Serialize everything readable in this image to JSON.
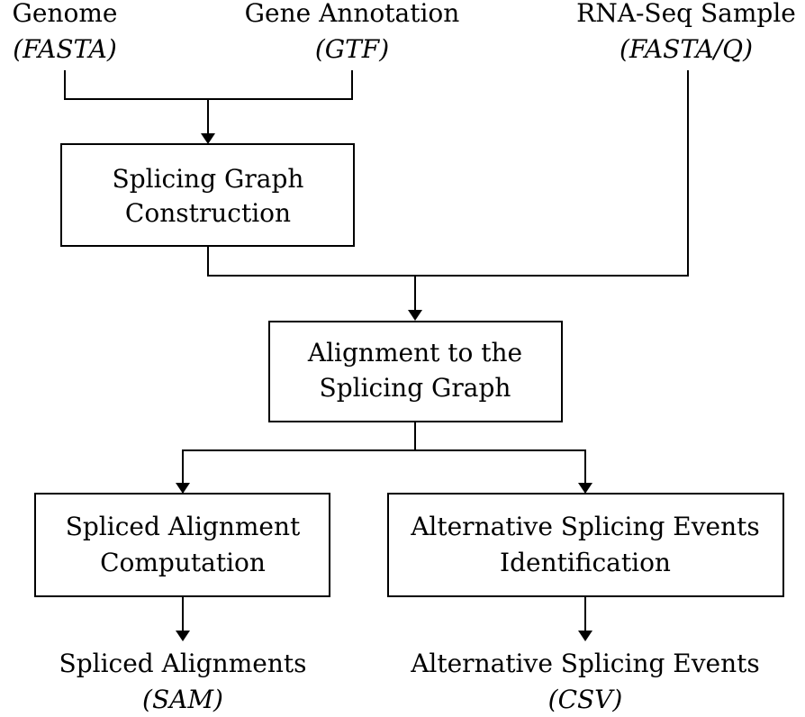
{
  "inputs": {
    "genome": {
      "name": "Genome",
      "format": "(FASTA)"
    },
    "annotation": {
      "name": "Gene Annotation",
      "format": "(GTF)"
    },
    "rnaseq": {
      "name": "RNA-Seq Sample",
      "format": "(FASTA/Q)"
    }
  },
  "steps": {
    "graph_construction": {
      "line1": "Splicing Graph",
      "line2": "Construction"
    },
    "alignment": {
      "line1": "Alignment to the",
      "line2": "Splicing Graph"
    },
    "spliced_alignment": {
      "line1": "Spliced Alignment",
      "line2": "Computation"
    },
    "as_events": {
      "line1": "Alternative Splicing Events",
      "line2": "Identification"
    }
  },
  "outputs": {
    "spliced_alignments": {
      "name": "Spliced Alignments",
      "format": "(SAM)"
    },
    "as_events": {
      "name": "Alternative Splicing Events",
      "format": "(CSV)"
    }
  }
}
